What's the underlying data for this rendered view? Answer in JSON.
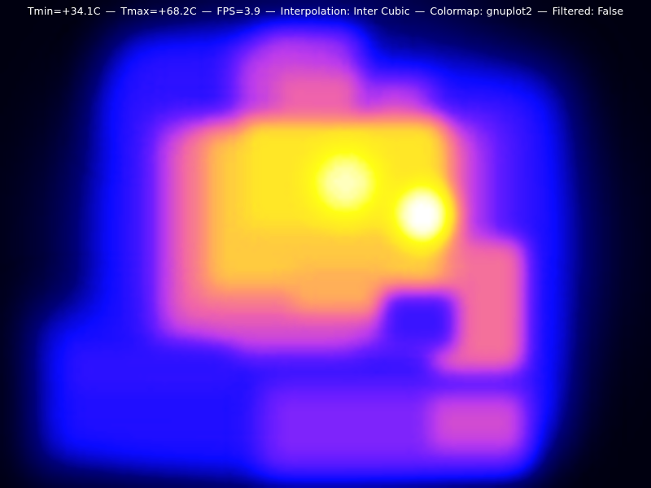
{
  "window": {
    "status": {
      "tmin": "Tmin=+34.1C",
      "tmax": "Tmax=+68.2C",
      "fps": "FPS=3.9",
      "interpolation": "Interpolation: Inter Cubic",
      "colormap": "Colormap: gnuplot2",
      "filtered": "Filtered: False",
      "separator": "—"
    }
  },
  "thermal_image": {
    "colormap_name": "gnuplot2",
    "tmin_c": 34.1,
    "tmax_c": 68.2,
    "colors": {
      "background": "#000010"
    }
  }
}
